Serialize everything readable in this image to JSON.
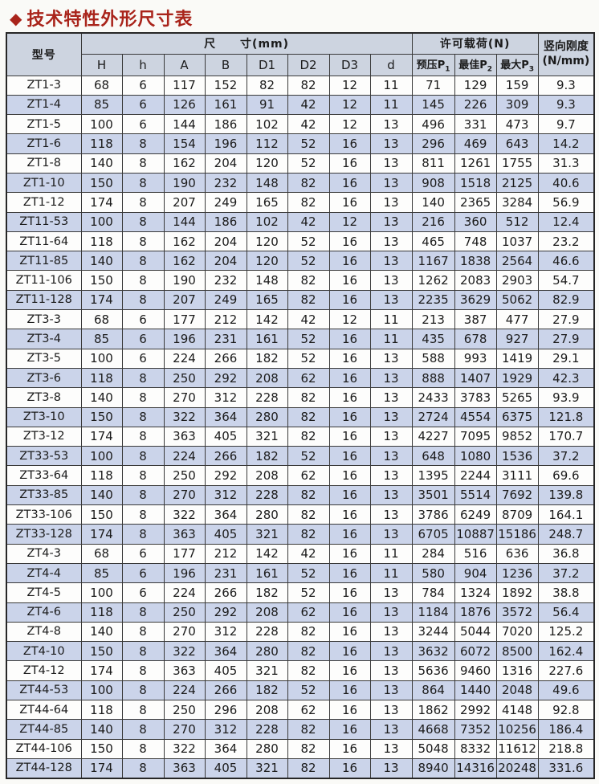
{
  "page": {
    "title": "技术特性外形尺寸表",
    "title_icon": "diamond"
  },
  "colors": {
    "title": "#a9241b",
    "header_bg": "#cdd4e0",
    "row_shade": "#cbd4ea",
    "border": "#3a3a3a"
  },
  "table": {
    "header": {
      "model": "型号",
      "dims_group": "尺　　寸(mm)",
      "load_group": "许可载荷(N)",
      "stiffness_line1": "竖向刚度",
      "stiffness_line2": "(N/mm)",
      "dim_cols": [
        "H",
        "h",
        "A",
        "B",
        "D1",
        "D2",
        "D3",
        "d"
      ],
      "load_cols": [
        {
          "text": "预压P",
          "sub": "1"
        },
        {
          "text": "最佳P",
          "sub": "2"
        },
        {
          "text": "最大P",
          "sub": "3"
        }
      ]
    },
    "rows": [
      [
        "ZT1-3",
        "68",
        "6",
        "117",
        "152",
        "82",
        "82",
        "12",
        "11",
        "71",
        "129",
        "159",
        "9.3"
      ],
      [
        "ZT1-4",
        "85",
        "6",
        "126",
        "161",
        "91",
        "42",
        "12",
        "11",
        "145",
        "226",
        "309",
        "9.3"
      ],
      [
        "ZT1-5",
        "100",
        "6",
        "144",
        "186",
        "102",
        "42",
        "12",
        "13",
        "496",
        "331",
        "473",
        "9.7"
      ],
      [
        "ZT1-6",
        "118",
        "8",
        "154",
        "196",
        "112",
        "52",
        "16",
        "13",
        "296",
        "469",
        "643",
        "14.2"
      ],
      [
        "ZT1-8",
        "140",
        "8",
        "162",
        "204",
        "120",
        "52",
        "16",
        "13",
        "811",
        "1261",
        "1755",
        "31.3"
      ],
      [
        "ZT1-10",
        "150",
        "8",
        "190",
        "232",
        "148",
        "82",
        "16",
        "13",
        "908",
        "1518",
        "2125",
        "40.6"
      ],
      [
        "ZT1-12",
        "174",
        "8",
        "207",
        "249",
        "165",
        "82",
        "16",
        "13",
        "140",
        "2365",
        "3284",
        "56.9"
      ],
      [
        "ZT11-53",
        "100",
        "8",
        "144",
        "186",
        "102",
        "42",
        "12",
        "13",
        "216",
        "360",
        "512",
        "12.4"
      ],
      [
        "ZT11-64",
        "118",
        "8",
        "162",
        "204",
        "120",
        "52",
        "16",
        "13",
        "465",
        "748",
        "1037",
        "23.2"
      ],
      [
        "ZT11-85",
        "140",
        "8",
        "162",
        "204",
        "120",
        "52",
        "16",
        "13",
        "1167",
        "1838",
        "2564",
        "46.6"
      ],
      [
        "ZT11-106",
        "150",
        "8",
        "190",
        "232",
        "148",
        "82",
        "16",
        "13",
        "1262",
        "2083",
        "2903",
        "54.7"
      ],
      [
        "ZT11-128",
        "174",
        "8",
        "207",
        "249",
        "165",
        "82",
        "16",
        "13",
        "2235",
        "3629",
        "5062",
        "82.9"
      ],
      [
        "ZT3-3",
        "68",
        "6",
        "177",
        "212",
        "142",
        "42",
        "12",
        "11",
        "213",
        "387",
        "477",
        "27.9"
      ],
      [
        "ZT3-4",
        "85",
        "6",
        "196",
        "231",
        "161",
        "52",
        "16",
        "11",
        "435",
        "678",
        "927",
        "27.9"
      ],
      [
        "ZT3-5",
        "100",
        "6",
        "224",
        "266",
        "182",
        "52",
        "16",
        "13",
        "588",
        "993",
        "1419",
        "29.1"
      ],
      [
        "ZT3-6",
        "118",
        "8",
        "250",
        "292",
        "208",
        "62",
        "16",
        "13",
        "888",
        "1407",
        "1929",
        "42.3"
      ],
      [
        "ZT3-8",
        "140",
        "8",
        "270",
        "312",
        "228",
        "82",
        "16",
        "13",
        "2433",
        "3783",
        "5265",
        "93.9"
      ],
      [
        "ZT3-10",
        "150",
        "8",
        "322",
        "364",
        "280",
        "82",
        "16",
        "13",
        "2724",
        "4554",
        "6375",
        "121.8"
      ],
      [
        "ZT3-12",
        "174",
        "8",
        "363",
        "405",
        "321",
        "82",
        "16",
        "13",
        "4227",
        "7095",
        "9852",
        "170.7"
      ],
      [
        "ZT33-53",
        "100",
        "8",
        "224",
        "266",
        "182",
        "52",
        "16",
        "13",
        "648",
        "1080",
        "1536",
        "37.2"
      ],
      [
        "ZT33-64",
        "118",
        "8",
        "250",
        "292",
        "208",
        "62",
        "16",
        "13",
        "1395",
        "2244",
        "3111",
        "69.6"
      ],
      [
        "ZT33-85",
        "140",
        "8",
        "270",
        "312",
        "228",
        "82",
        "16",
        "13",
        "3501",
        "5514",
        "7692",
        "139.8"
      ],
      [
        "ZT33-106",
        "150",
        "8",
        "322",
        "364",
        "280",
        "82",
        "16",
        "13",
        "3786",
        "6249",
        "8709",
        "164.1"
      ],
      [
        "ZT33-128",
        "174",
        "8",
        "363",
        "405",
        "321",
        "82",
        "16",
        "13",
        "6705",
        "10887",
        "15186",
        "248.7"
      ],
      [
        "ZT4-3",
        "68",
        "6",
        "177",
        "212",
        "142",
        "42",
        "16",
        "11",
        "284",
        "516",
        "636",
        "36.8"
      ],
      [
        "ZT4-4",
        "85",
        "6",
        "196",
        "231",
        "161",
        "52",
        "16",
        "11",
        "580",
        "904",
        "1236",
        "37.2"
      ],
      [
        "ZT4-5",
        "100",
        "6",
        "224",
        "266",
        "182",
        "52",
        "16",
        "13",
        "784",
        "1324",
        "1892",
        "38.8"
      ],
      [
        "ZT4-6",
        "118",
        "8",
        "250",
        "292",
        "208",
        "62",
        "16",
        "13",
        "1184",
        "1876",
        "3572",
        "56.4"
      ],
      [
        "ZT4-8",
        "140",
        "8",
        "270",
        "312",
        "228",
        "82",
        "16",
        "13",
        "3244",
        "5044",
        "7020",
        "125.2"
      ],
      [
        "ZT4-10",
        "150",
        "8",
        "322",
        "364",
        "280",
        "82",
        "16",
        "13",
        "3632",
        "6072",
        "8500",
        "162.4"
      ],
      [
        "ZT4-12",
        "174",
        "8",
        "363",
        "405",
        "321",
        "82",
        "16",
        "13",
        "5636",
        "9460",
        "1316",
        "227.6"
      ],
      [
        "ZT44-53",
        "100",
        "8",
        "224",
        "266",
        "182",
        "52",
        "16",
        "13",
        "864",
        "1440",
        "2048",
        "49.6"
      ],
      [
        "ZT44-64",
        "118",
        "8",
        "250",
        "296",
        "208",
        "62",
        "16",
        "13",
        "1862",
        "2992",
        "4148",
        "92.8"
      ],
      [
        "ZT44-85",
        "140",
        "8",
        "270",
        "312",
        "228",
        "82",
        "16",
        "13",
        "4668",
        "7352",
        "10256",
        "186.4"
      ],
      [
        "ZT44-106",
        "150",
        "8",
        "322",
        "364",
        "280",
        "82",
        "16",
        "13",
        "5048",
        "8332",
        "11612",
        "218.8"
      ],
      [
        "ZT44-128",
        "174",
        "8",
        "363",
        "405",
        "321",
        "82",
        "16",
        "13",
        "8940",
        "14316",
        "20248",
        "331.6"
      ]
    ]
  }
}
